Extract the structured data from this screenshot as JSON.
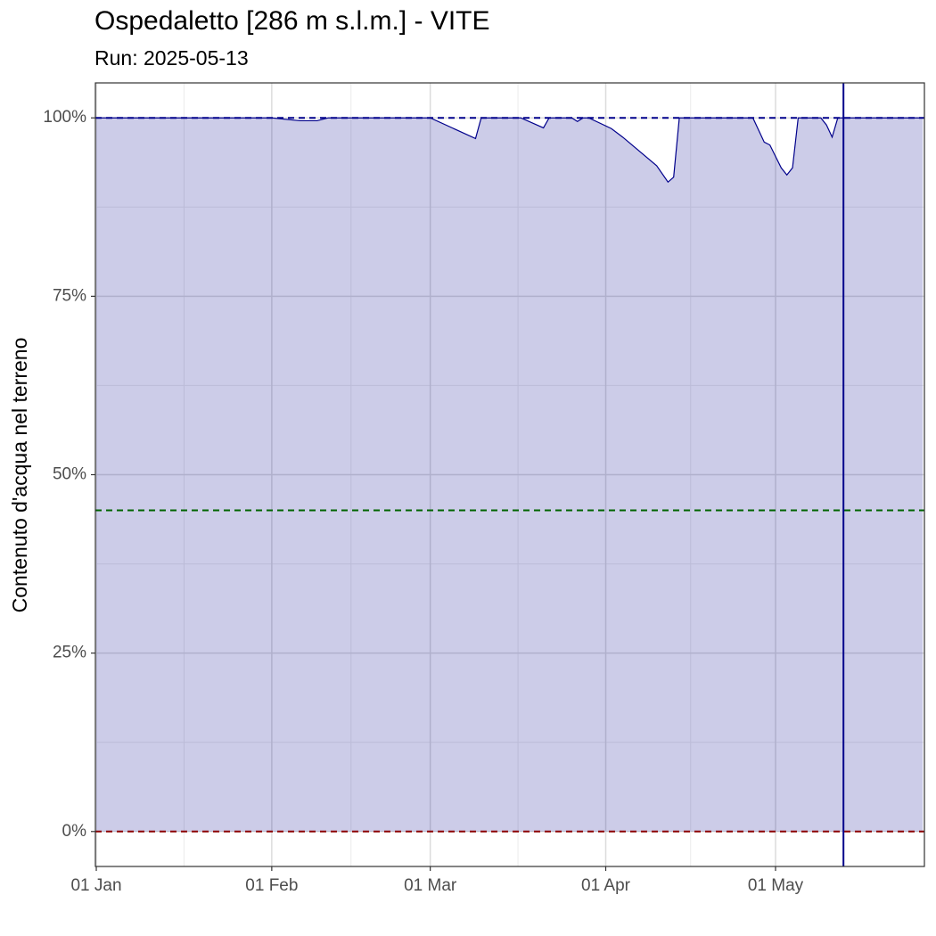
{
  "chart_data": {
    "type": "area",
    "title": "Ospedaletto [286 m s.l.m.] - VITE",
    "subtitle": "Run: 2025-05-13",
    "y_label": "Contenuto d'acqua nel terreno",
    "x": [
      1,
      32,
      37,
      40,
      42,
      60,
      68,
      69,
      76,
      80,
      81,
      85,
      86,
      87,
      88,
      92,
      94,
      100,
      102,
      103,
      104,
      117,
      119,
      120,
      122,
      123,
      124,
      125,
      129,
      130,
      131,
      132,
      147
    ],
    "values": [
      100,
      100,
      99.6,
      99.6,
      100,
      100,
      97.1,
      100,
      100,
      98.6,
      100,
      100,
      99.5,
      100,
      100,
      98.5,
      97.3,
      93.3,
      91.0,
      91.7,
      100,
      100,
      96.6,
      96.2,
      93.0,
      92.0,
      93.0,
      100,
      100,
      99.0,
      97.3,
      100,
      100
    ],
    "color": "#00008b",
    "fill_opacity": 0.2,
    "xlim": [
      0.84,
      147.3
    ],
    "ylim": [
      -4.9,
      104.9
    ],
    "xticks": [
      {
        "value": 1,
        "label": "01 Jan"
      },
      {
        "value": 32,
        "label": "01 Feb"
      },
      {
        "value": 60,
        "label": "01 Mar"
      },
      {
        "value": 91,
        "label": "01 Apr"
      },
      {
        "value": 121,
        "label": "01 May"
      }
    ],
    "yticks": [
      {
        "value": 0,
        "label": "0%"
      },
      {
        "value": 25,
        "label": "25%"
      },
      {
        "value": 50,
        "label": "50%"
      },
      {
        "value": 75,
        "label": "75%"
      },
      {
        "value": 100,
        "label": "100%"
      }
    ],
    "hlines": [
      {
        "y": 100,
        "color": "#00008b"
      },
      {
        "y": 45,
        "color": "#006400"
      },
      {
        "y": 0,
        "color": "#8b0000"
      }
    ],
    "run_line_x": 133,
    "grid": true
  }
}
